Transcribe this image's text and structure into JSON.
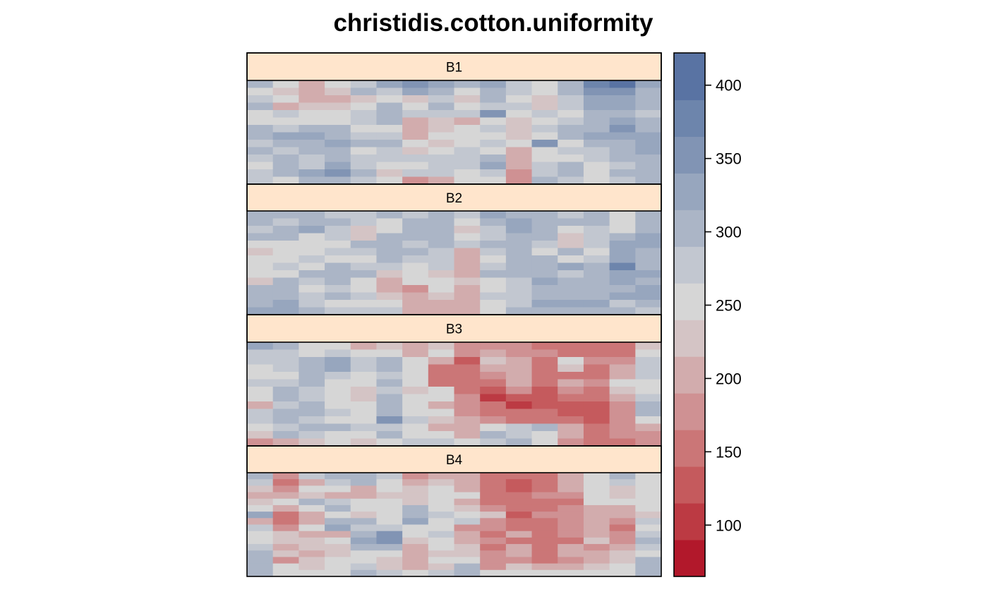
{
  "chart_data": {
    "type": "heatmap",
    "title": "christidis.cotton.uniformity",
    "xlabel": "",
    "ylabel": "",
    "colorbar": {
      "ticks": [
        100,
        150,
        200,
        250,
        300,
        350,
        400
      ],
      "range": [
        65,
        422
      ],
      "breaks": [
        65,
        90,
        115,
        140,
        165,
        190,
        215,
        240,
        265,
        290,
        315,
        340,
        365,
        390,
        422
      ],
      "colors": [
        "#B2182B",
        "#BC3A43",
        "#C55A5D",
        "#CB7677",
        "#CF9193",
        "#D2ACAD",
        "#D4C4C5",
        "#D6D6D6",
        "#C2C7D0",
        "#ABB5C6",
        "#97A6BE",
        "#8194B4",
        "#6D85AC",
        "#5973A3",
        "#4A69A0"
      ]
    },
    "panels": [
      {
        "label": "B1",
        "values": [
          [
            295,
            240,
            205,
            240,
            280,
            330,
            360,
            320,
            300,
            320,
            280,
            260,
            300,
            380,
            400,
            330
          ],
          [
            250,
            220,
            190,
            230,
            300,
            280,
            320,
            300,
            240,
            300,
            270,
            250,
            300,
            350,
            340,
            300
          ],
          [
            270,
            240,
            190,
            210,
            230,
            240,
            230,
            270,
            230,
            290,
            260,
            230,
            280,
            320,
            320,
            300
          ],
          [
            300,
            190,
            230,
            220,
            260,
            290,
            260,
            300,
            250,
            280,
            280,
            230,
            280,
            320,
            320,
            290
          ],
          [
            250,
            270,
            260,
            250,
            270,
            290,
            280,
            270,
            270,
            360,
            250,
            270,
            250,
            300,
            310,
            280
          ],
          [
            240,
            260,
            250,
            240,
            280,
            300,
            190,
            230,
            210,
            260,
            230,
            240,
            270,
            310,
            330,
            300
          ],
          [
            300,
            280,
            300,
            290,
            260,
            240,
            200,
            220,
            240,
            270,
            230,
            280,
            310,
            300,
            340,
            310
          ],
          [
            300,
            330,
            320,
            310,
            270,
            280,
            210,
            240,
            250,
            260,
            220,
            250,
            300,
            320,
            320,
            330
          ],
          [
            270,
            310,
            300,
            330,
            290,
            300,
            260,
            230,
            240,
            270,
            250,
            340,
            240,
            290,
            300,
            330
          ],
          [
            300,
            280,
            290,
            310,
            260,
            280,
            230,
            260,
            270,
            260,
            210,
            260,
            280,
            280,
            300,
            320
          ],
          [
            280,
            290,
            280,
            300,
            280,
            270,
            270,
            270,
            280,
            290,
            210,
            260,
            240,
            270,
            290,
            300
          ],
          [
            250,
            300,
            280,
            330,
            280,
            240,
            260,
            280,
            270,
            320,
            190,
            280,
            300,
            260,
            270,
            310
          ],
          [
            270,
            300,
            320,
            340,
            290,
            230,
            270,
            280,
            250,
            280,
            180,
            280,
            300,
            260,
            290,
            300
          ],
          [
            280,
            240,
            300,
            290,
            280,
            250,
            170,
            210,
            240,
            260,
            180,
            290,
            270,
            260,
            280,
            300
          ]
        ]
      },
      {
        "label": "B2",
        "values": [
          [
            290,
            300,
            300,
            280,
            280,
            300,
            280,
            300,
            280,
            320,
            310,
            300,
            270,
            300,
            260,
            300
          ],
          [
            300,
            280,
            310,
            290,
            270,
            260,
            290,
            300,
            240,
            300,
            320,
            290,
            290,
            310,
            260,
            300
          ],
          [
            280,
            300,
            330,
            280,
            220,
            260,
            300,
            310,
            220,
            280,
            330,
            300,
            240,
            280,
            260,
            310
          ],
          [
            300,
            290,
            260,
            280,
            230,
            300,
            310,
            300,
            240,
            280,
            300,
            290,
            220,
            280,
            300,
            320
          ],
          [
            240,
            250,
            260,
            250,
            290,
            300,
            280,
            290,
            270,
            290,
            300,
            270,
            230,
            280,
            330,
            320
          ],
          [
            230,
            240,
            260,
            280,
            280,
            300,
            310,
            270,
            200,
            280,
            310,
            240,
            290,
            260,
            320,
            300
          ],
          [
            250,
            240,
            280,
            260,
            250,
            290,
            280,
            270,
            190,
            260,
            310,
            300,
            260,
            280,
            330,
            310
          ],
          [
            240,
            280,
            260,
            300,
            280,
            270,
            240,
            270,
            190,
            280,
            300,
            300,
            320,
            300,
            370,
            300
          ],
          [
            250,
            260,
            300,
            300,
            290,
            220,
            250,
            220,
            200,
            290,
            300,
            310,
            280,
            300,
            320,
            320
          ],
          [
            230,
            300,
            270,
            300,
            240,
            210,
            260,
            240,
            220,
            260,
            270,
            330,
            290,
            300,
            320,
            310
          ],
          [
            290,
            300,
            260,
            280,
            260,
            200,
            180,
            240,
            210,
            250,
            280,
            300,
            310,
            310,
            310,
            330
          ],
          [
            300,
            300,
            280,
            300,
            270,
            220,
            210,
            230,
            210,
            270,
            280,
            300,
            300,
            300,
            330,
            320
          ],
          [
            300,
            320,
            280,
            260,
            260,
            240,
            190,
            210,
            200,
            260,
            280,
            320,
            320,
            330,
            270,
            300
          ],
          [
            320,
            330,
            300,
            280,
            280,
            270,
            210,
            210,
            210,
            250,
            290,
            300,
            310,
            300,
            290,
            280
          ]
        ]
      },
      {
        "label": "B3",
        "values": [
          [
            320,
            300,
            260,
            240,
            200,
            230,
            210,
            230,
            170,
            170,
            170,
            160,
            160,
            160,
            160,
            220
          ],
          [
            280,
            270,
            240,
            280,
            250,
            240,
            200,
            240,
            180,
            210,
            180,
            180,
            160,
            160,
            150,
            260
          ],
          [
            270,
            280,
            310,
            320,
            280,
            290,
            250,
            190,
            120,
            220,
            200,
            150,
            260,
            170,
            180,
            270
          ],
          [
            260,
            280,
            300,
            330,
            270,
            310,
            240,
            160,
            140,
            200,
            210,
            160,
            230,
            160,
            200,
            280
          ],
          [
            250,
            260,
            310,
            280,
            260,
            280,
            240,
            150,
            140,
            170,
            200,
            160,
            160,
            150,
            210,
            270
          ],
          [
            270,
            280,
            290,
            260,
            240,
            290,
            260,
            150,
            140,
            160,
            190,
            150,
            190,
            170,
            240,
            260
          ],
          [
            250,
            310,
            280,
            260,
            220,
            270,
            230,
            260,
            150,
            130,
            170,
            130,
            180,
            160,
            230,
            260
          ],
          [
            240,
            300,
            270,
            260,
            230,
            300,
            250,
            260,
            170,
            110,
            130,
            130,
            140,
            150,
            200,
            280
          ],
          [
            190,
            280,
            300,
            260,
            250,
            310,
            240,
            200,
            180,
            150,
            110,
            130,
            130,
            130,
            180,
            300
          ],
          [
            270,
            300,
            310,
            270,
            240,
            300,
            260,
            240,
            170,
            160,
            150,
            150,
            120,
            120,
            170,
            290
          ],
          [
            280,
            290,
            280,
            260,
            250,
            360,
            270,
            230,
            190,
            170,
            150,
            150,
            140,
            120,
            170,
            250
          ],
          [
            240,
            270,
            290,
            300,
            280,
            270,
            260,
            190,
            190,
            250,
            280,
            300,
            190,
            140,
            170,
            200
          ],
          [
            230,
            290,
            280,
            260,
            250,
            300,
            260,
            260,
            200,
            290,
            270,
            260,
            190,
            150,
            170,
            170
          ],
          [
            170,
            200,
            230,
            240,
            220,
            260,
            270,
            270,
            250,
            280,
            290,
            260,
            180,
            160,
            160,
            170
          ]
        ]
      },
      {
        "label": "B4",
        "values": [
          [
            290,
            170,
            280,
            300,
            290,
            270,
            170,
            200,
            190,
            150,
            150,
            150,
            190,
            260,
            300,
            260
          ],
          [
            280,
            150,
            200,
            280,
            300,
            260,
            200,
            230,
            190,
            150,
            130,
            150,
            190,
            260,
            280,
            260
          ],
          [
            220,
            170,
            240,
            250,
            210,
            240,
            220,
            240,
            210,
            150,
            120,
            160,
            200,
            260,
            230,
            250
          ],
          [
            210,
            190,
            220,
            210,
            200,
            220,
            230,
            260,
            240,
            150,
            140,
            170,
            180,
            250,
            220,
            240
          ],
          [
            230,
            260,
            290,
            280,
            260,
            240,
            230,
            260,
            200,
            140,
            160,
            150,
            160,
            260,
            260,
            260
          ],
          [
            250,
            210,
            260,
            300,
            260,
            250,
            300,
            260,
            220,
            170,
            140,
            160,
            170,
            200,
            190,
            240
          ],
          [
            320,
            160,
            210,
            250,
            230,
            250,
            300,
            280,
            260,
            220,
            130,
            180,
            170,
            190,
            190,
            230
          ],
          [
            190,
            160,
            200,
            310,
            290,
            240,
            320,
            260,
            270,
            170,
            150,
            150,
            180,
            190,
            180,
            270
          ],
          [
            270,
            180,
            240,
            320,
            280,
            270,
            260,
            260,
            180,
            170,
            160,
            150,
            170,
            200,
            160,
            260
          ],
          [
            240,
            220,
            190,
            210,
            290,
            340,
            250,
            280,
            210,
            150,
            190,
            150,
            180,
            200,
            170,
            280
          ],
          [
            260,
            230,
            220,
            260,
            320,
            350,
            230,
            260,
            190,
            170,
            160,
            160,
            160,
            220,
            180,
            310
          ],
          [
            270,
            190,
            220,
            230,
            290,
            290,
            210,
            240,
            230,
            160,
            210,
            150,
            200,
            180,
            190,
            280
          ],
          [
            290,
            230,
            190,
            230,
            260,
            250,
            200,
            230,
            220,
            180,
            190,
            160,
            190,
            200,
            220,
            250
          ],
          [
            310,
            180,
            220,
            240,
            250,
            230,
            210,
            260,
            240,
            170,
            170,
            140,
            170,
            200,
            230,
            300
          ],
          [
            300,
            240,
            230,
            260,
            270,
            230,
            210,
            230,
            290,
            170,
            220,
            190,
            200,
            220,
            240,
            310
          ],
          [
            300,
            250,
            250,
            260,
            290,
            270,
            260,
            270,
            300,
            250,
            260,
            260,
            260,
            240,
            260,
            290
          ]
        ]
      }
    ]
  }
}
